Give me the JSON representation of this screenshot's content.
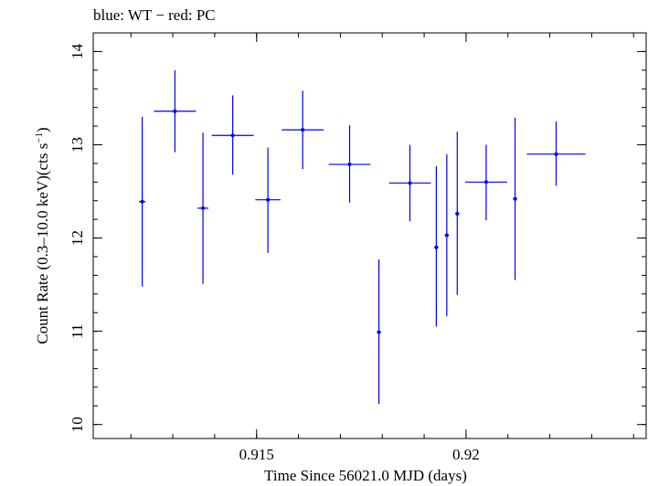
{
  "chart_data": {
    "type": "scatter",
    "title": "blue: WT − red: PC",
    "xlabel": "Time Since 56021.0 MJD (days)",
    "ylabel_main": "Count Rate (0.3–10.0 keV)(cts s",
    "ylabel_sup": "−1",
    "ylabel_close": ")",
    "xlim": [
      0.9111,
      0.9243
    ],
    "ylim": [
      9.85,
      14.2
    ],
    "x_ticks": [
      {
        "value": 0.915,
        "label": "0.915"
      },
      {
        "value": 0.92,
        "label": "0.92"
      }
    ],
    "y_ticks": [
      {
        "value": 10,
        "label": "10"
      },
      {
        "value": 11,
        "label": "11"
      },
      {
        "value": 12,
        "label": "12"
      },
      {
        "value": 13,
        "label": "13"
      },
      {
        "value": 14,
        "label": "14"
      }
    ],
    "x_minor_step": 0.001,
    "y_minor_step": 0.2,
    "series": [
      {
        "color": "#0000ee",
        "points": [
          {
            "x": 0.91227,
            "xerr": 8e-05,
            "y": 12.39,
            "ylo": 11.48,
            "yhi": 13.3
          },
          {
            "x": 0.91305,
            "xerr": 0.0005,
            "y": 13.36,
            "ylo": 12.92,
            "yhi": 13.8
          },
          {
            "x": 0.91372,
            "xerr": 0.00013,
            "y": 12.32,
            "ylo": 11.51,
            "yhi": 13.13
          },
          {
            "x": 0.91443,
            "xerr": 0.0005,
            "y": 13.1,
            "ylo": 12.68,
            "yhi": 13.53
          },
          {
            "x": 0.91527,
            "xerr": 0.0003,
            "y": 12.41,
            "ylo": 11.84,
            "yhi": 12.97
          },
          {
            "x": 0.9161,
            "xerr": 0.0005,
            "y": 13.16,
            "ylo": 12.74,
            "yhi": 13.58
          },
          {
            "x": 0.91722,
            "xerr": 0.0005,
            "y": 12.79,
            "ylo": 12.38,
            "yhi": 13.21
          },
          {
            "x": 0.91792,
            "xerr": 5e-05,
            "y": 10.99,
            "ylo": 10.22,
            "yhi": 11.77
          },
          {
            "x": 0.91866,
            "xerr": 0.0005,
            "y": 12.59,
            "ylo": 12.18,
            "yhi": 13.0
          },
          {
            "x": 0.91929,
            "xerr": 5e-05,
            "y": 11.9,
            "ylo": 11.05,
            "yhi": 12.77
          },
          {
            "x": 0.91954,
            "xerr": 5e-05,
            "y": 12.03,
            "ylo": 11.16,
            "yhi": 12.9
          },
          {
            "x": 0.91979,
            "xerr": 5e-05,
            "y": 12.26,
            "ylo": 11.39,
            "yhi": 13.14
          },
          {
            "x": 0.92048,
            "xerr": 0.0005,
            "y": 12.6,
            "ylo": 12.19,
            "yhi": 13.0
          },
          {
            "x": 0.92117,
            "xerr": 5e-05,
            "y": 12.42,
            "ylo": 11.55,
            "yhi": 13.29
          },
          {
            "x": 0.92215,
            "xerr": 0.0007,
            "y": 12.9,
            "ylo": 12.56,
            "yhi": 13.25
          }
        ]
      }
    ]
  }
}
